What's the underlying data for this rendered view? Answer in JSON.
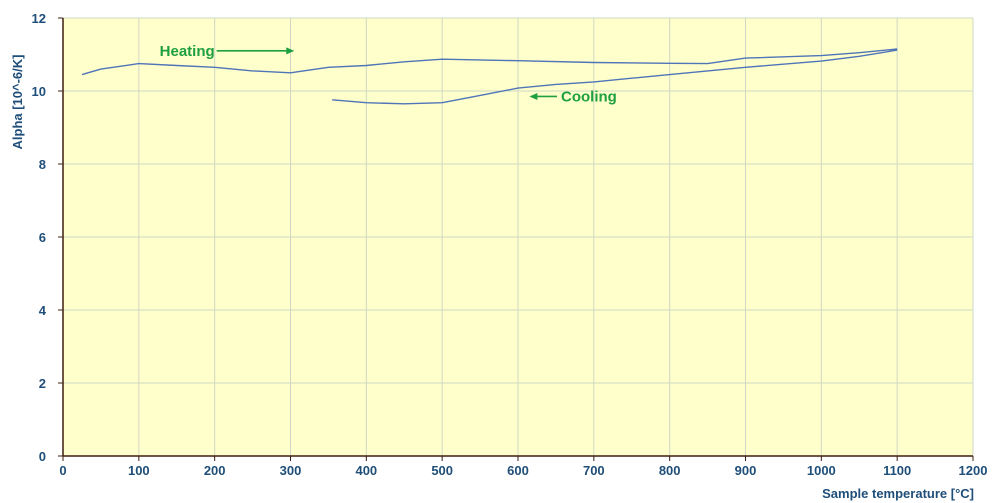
{
  "chart_data": {
    "type": "line",
    "xlabel": "Sample temperature [°C]",
    "ylabel": "Alpha [10^-6/K]",
    "xlim": [
      0,
      1200
    ],
    "ylim": [
      0,
      12
    ],
    "x_ticks": [
      0,
      100,
      200,
      300,
      400,
      500,
      600,
      700,
      800,
      900,
      1000,
      1100,
      1200
    ],
    "y_ticks": [
      0,
      2,
      4,
      6,
      8,
      10,
      12
    ],
    "grid": true,
    "plot_background": "#ffffcc",
    "grid_color": "#cfd8c4",
    "line_color": "#4f74b8",
    "axis_color": "#3d1f0f",
    "annotation_color": "#1fa040",
    "series": [
      {
        "x": [
          25,
          50,
          100,
          150,
          200,
          250,
          300,
          350,
          400,
          450,
          500,
          600,
          700,
          800,
          850,
          900,
          1000,
          1050,
          1100
        ],
        "y": [
          10.45,
          10.6,
          10.75,
          10.7,
          10.65,
          10.55,
          10.5,
          10.65,
          10.7,
          10.8,
          10.87,
          10.83,
          10.78,
          10.76,
          10.75,
          10.9,
          10.97,
          11.05,
          11.15
        ]
      },
      {
        "x": [
          1100,
          1050,
          1000,
          900,
          800,
          750,
          700,
          650,
          600,
          550,
          500,
          450,
          400,
          355
        ],
        "y": [
          11.12,
          10.95,
          10.82,
          10.65,
          10.45,
          10.35,
          10.25,
          10.18,
          10.08,
          9.88,
          9.68,
          9.65,
          9.68,
          9.76
        ]
      }
    ],
    "annotations": [
      {
        "text": "Heating",
        "arrow": "right",
        "x": 200,
        "y": 11.1,
        "arrow_to_x": 305
      },
      {
        "text": "Cooling",
        "arrow": "left",
        "x": 720,
        "y": 9.85,
        "arrow_to_x": 615
      }
    ]
  }
}
